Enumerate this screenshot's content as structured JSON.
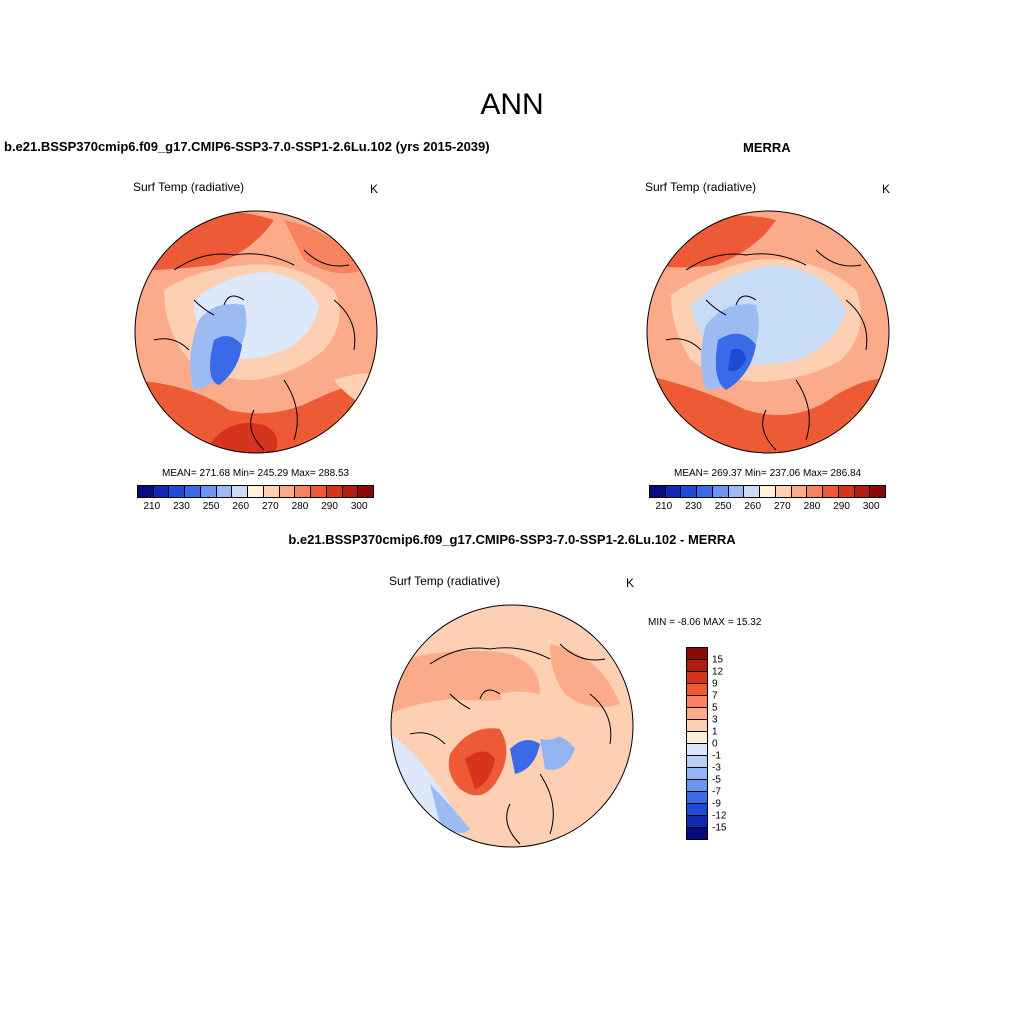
{
  "main_title": "ANN",
  "left_panel": {
    "title": "b.e21.BSSP370cmip6.f09_g17.CMIP6-SSP3-7.0-SSP1-2.6Lu.102 (yrs 2015-2039)",
    "variable": "Surf Temp (radiative)",
    "units": "K",
    "stats": "MEAN= 271.68  Min= 245.29  Max= 288.53"
  },
  "right_panel": {
    "title": "MERRA",
    "variable": "Surf Temp (radiative)",
    "units": "K",
    "stats": "MEAN= 269.37  Min= 237.06  Max= 286.84"
  },
  "diff_panel": {
    "title": "b.e21.BSSP370cmip6.f09_g17.CMIP6-SSP3-7.0-SSP1-2.6Lu.102 - MERRA",
    "variable": "Surf Temp (radiative)",
    "units": "K",
    "stats": "MIN =  -8.06 MAX =  15.32"
  },
  "abs_colorbar": {
    "colors": [
      "#0a0a80",
      "#1328b0",
      "#1f4ad6",
      "#3a6ae8",
      "#6b95f0",
      "#9dbbf3",
      "#c8dcf8",
      "#fff1de",
      "#fdd0b4",
      "#fbab8a",
      "#f8825e",
      "#ee5a36",
      "#d6341c",
      "#b21c10",
      "#8a0a0a"
    ],
    "tick_labels": [
      "210",
      "230",
      "250",
      "260",
      "270",
      "280",
      "290",
      "300"
    ]
  },
  "diff_colorbar": {
    "colors": [
      "#8a0a0a",
      "#b21c10",
      "#d6341c",
      "#ee5a36",
      "#f8825e",
      "#fbab8a",
      "#fdd0b4",
      "#fff1de",
      "#dde9fa",
      "#b9cff5",
      "#94b3f1",
      "#6b95f0",
      "#3a6ae8",
      "#1f4ad6",
      "#1328b0",
      "#0a0a80"
    ],
    "tick_labels": [
      "15",
      "12",
      "9",
      "7",
      "5",
      "3",
      "1",
      "0",
      "-1",
      "-3",
      "-5",
      "-7",
      "-9",
      "-12",
      "-15"
    ]
  }
}
